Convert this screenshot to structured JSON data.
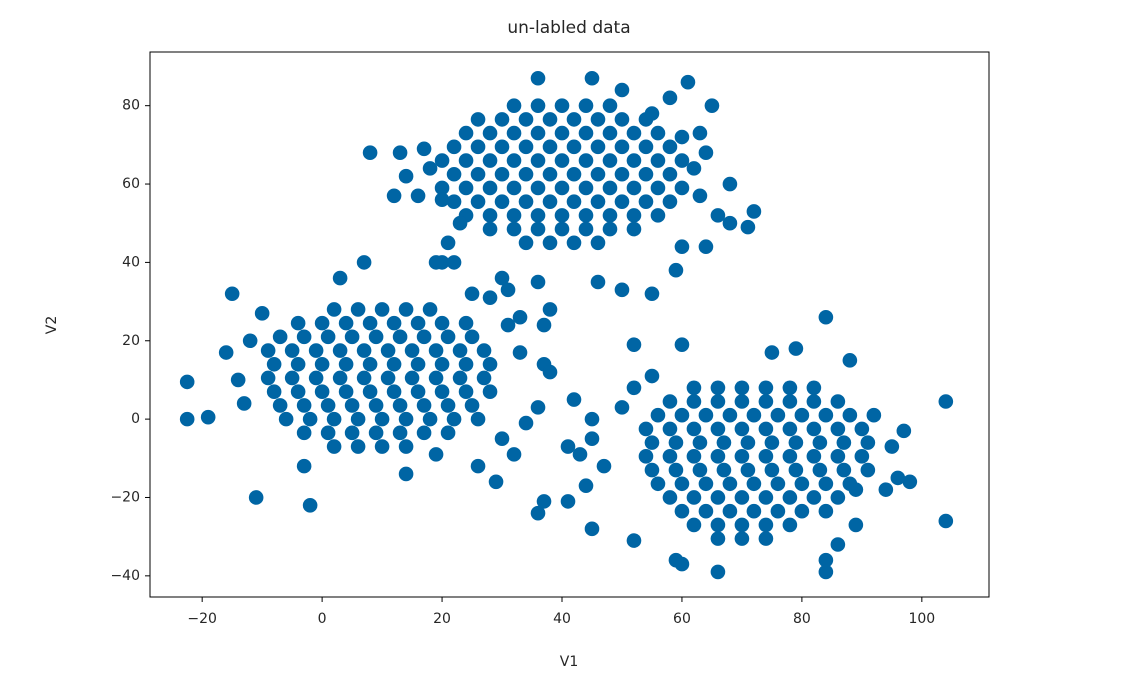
{
  "chart_data": {
    "type": "scatter",
    "title": "un-labled data",
    "xlabel": "V1",
    "ylabel": "V2",
    "color": "#0065a4",
    "xlim": [
      -28.7,
      111.2
    ],
    "ylim": [
      -45.4,
      93.7
    ],
    "xticks": [
      {
        "value": -20,
        "label": "−20"
      },
      0,
      20,
      40,
      60,
      80,
      100
    ],
    "yticks": [
      {
        "value": -40,
        "label": "−40"
      },
      {
        "value": -20,
        "label": "−20"
      },
      0,
      20,
      40,
      60,
      80
    ],
    "grid": false,
    "x": [
      2,
      6,
      10,
      14,
      18,
      -4,
      0,
      4,
      8,
      12,
      16,
      20,
      24,
      -7,
      -3,
      1,
      5,
      9,
      13,
      17,
      21,
      25,
      -9,
      -5,
      -1,
      3,
      7,
      11,
      15,
      19,
      23,
      27,
      -8,
      -4,
      0,
      4,
      8,
      12,
      16,
      20,
      24,
      28,
      -9,
      -5,
      -1,
      3,
      7,
      11,
      15,
      19,
      23,
      27,
      -8,
      -4,
      0,
      4,
      8,
      12,
      16,
      20,
      24,
      28,
      -7,
      -3,
      1,
      5,
      9,
      13,
      17,
      21,
      25,
      -6,
      -2,
      2,
      6,
      10,
      14,
      18,
      22,
      26,
      -3,
      1,
      5,
      9,
      13,
      17,
      21,
      2,
      6,
      10,
      14,
      -22.5,
      -22.5,
      -19,
      -15,
      -11,
      -2,
      -16,
      -14,
      -13,
      -10,
      -12,
      7,
      3,
      20,
      25,
      31,
      29,
      32,
      34,
      36,
      37,
      38,
      26,
      30,
      14,
      -3,
      19,
      33,
      32,
      36,
      40,
      44,
      48,
      26,
      30,
      34,
      38,
      42,
      46,
      50,
      54,
      24,
      28,
      32,
      36,
      40,
      44,
      48,
      52,
      56,
      22,
      26,
      30,
      34,
      38,
      42,
      46,
      50,
      54,
      58,
      20,
      24,
      28,
      32,
      36,
      40,
      44,
      48,
      52,
      56,
      60,
      22,
      26,
      30,
      34,
      38,
      42,
      46,
      50,
      54,
      58,
      20,
      24,
      28,
      32,
      36,
      40,
      44,
      48,
      52,
      56,
      60,
      22,
      26,
      30,
      34,
      38,
      42,
      46,
      50,
      54,
      58,
      24,
      28,
      32,
      36,
      40,
      44,
      48,
      52,
      56,
      28,
      32,
      36,
      40,
      44,
      48,
      52,
      34,
      38,
      42,
      46,
      13,
      12,
      14,
      8,
      17,
      18,
      16,
      20,
      23,
      21,
      19,
      22,
      30,
      28,
      31,
      33,
      38,
      37,
      36,
      46,
      50,
      55,
      59,
      60,
      64,
      66,
      68,
      71,
      72,
      68,
      63,
      62,
      60,
      63,
      55,
      58,
      61,
      65,
      45,
      36,
      50,
      64,
      62,
      66,
      70,
      74,
      78,
      82,
      58,
      62,
      66,
      70,
      74,
      78,
      82,
      86,
      56,
      60,
      64,
      68,
      72,
      76,
      80,
      84,
      88,
      54,
      58,
      62,
      66,
      70,
      74,
      78,
      82,
      86,
      90,
      55,
      59,
      63,
      67,
      71,
      75,
      79,
      83,
      87,
      91,
      54,
      58,
      62,
      66,
      70,
      74,
      78,
      82,
      86,
      90,
      55,
      59,
      63,
      67,
      71,
      75,
      79,
      83,
      87,
      91,
      56,
      60,
      64,
      68,
      72,
      76,
      80,
      84,
      88,
      58,
      62,
      66,
      70,
      74,
      78,
      82,
      86,
      60,
      64,
      68,
      72,
      76,
      80,
      84,
      62,
      66,
      70,
      74,
      78,
      66,
      70,
      74,
      104,
      104,
      97,
      98,
      95,
      94,
      92,
      89,
      86,
      84,
      84,
      66,
      60,
      59,
      52,
      52,
      60,
      75,
      79,
      84,
      88,
      52,
      45,
      45,
      43,
      41,
      44,
      45,
      37,
      36,
      41,
      47,
      50,
      55,
      89,
      96,
      42
    ],
    "values": [
      28,
      28,
      28,
      28,
      28,
      24.5,
      24.5,
      24.5,
      24.5,
      24.5,
      24.5,
      24.5,
      24.5,
      21,
      21,
      21,
      21,
      21,
      21,
      21,
      21,
      21,
      17.5,
      17.5,
      17.5,
      17.5,
      17.5,
      17.5,
      17.5,
      17.5,
      17.5,
      17.5,
      14,
      14,
      14,
      14,
      14,
      14,
      14,
      14,
      14,
      14,
      10.5,
      10.5,
      10.5,
      10.5,
      10.5,
      10.5,
      10.5,
      10.5,
      10.5,
      10.5,
      7,
      7,
      7,
      7,
      7,
      7,
      7,
      7,
      7,
      7,
      3.5,
      3.5,
      3.5,
      3.5,
      3.5,
      3.5,
      3.5,
      3.5,
      3.5,
      0,
      0,
      0,
      0,
      0,
      0,
      0,
      0,
      0,
      -3.5,
      -3.5,
      -3.5,
      -3.5,
      -3.5,
      -3.5,
      -3.5,
      -7,
      -7,
      -7,
      -7,
      9.5,
      0,
      0.5,
      32,
      -20,
      -22,
      17,
      10,
      4,
      27,
      20,
      40,
      36,
      40,
      32,
      24,
      -16,
      -9,
      -1,
      3,
      14,
      12,
      -12,
      -5,
      -14,
      -12,
      -9,
      17,
      80,
      80,
      80,
      80,
      80,
      76.5,
      76.5,
      76.5,
      76.5,
      76.5,
      76.5,
      76.5,
      76.5,
      73,
      73,
      73,
      73,
      73,
      73,
      73,
      73,
      73,
      69.5,
      69.5,
      69.5,
      69.5,
      69.5,
      69.5,
      69.5,
      69.5,
      69.5,
      69.5,
      66,
      66,
      66,
      66,
      66,
      66,
      66,
      66,
      66,
      66,
      66,
      62.5,
      62.5,
      62.5,
      62.5,
      62.5,
      62.5,
      62.5,
      62.5,
      62.5,
      62.5,
      59,
      59,
      59,
      59,
      59,
      59,
      59,
      59,
      59,
      59,
      59,
      55.5,
      55.5,
      55.5,
      55.5,
      55.5,
      55.5,
      55.5,
      55.5,
      55.5,
      55.5,
      52,
      52,
      52,
      52,
      52,
      52,
      52,
      52,
      52,
      48.5,
      48.5,
      48.5,
      48.5,
      48.5,
      48.5,
      48.5,
      45,
      45,
      45,
      45,
      68,
      57,
      62,
      68,
      69,
      64,
      57,
      56,
      50,
      45,
      40,
      40,
      36,
      31,
      33,
      26,
      28,
      24,
      35,
      35,
      33,
      32,
      38,
      44,
      44,
      52,
      50,
      49,
      53,
      60,
      57,
      64,
      72,
      73,
      78,
      82,
      86,
      80,
      87,
      87,
      84,
      68,
      8,
      8,
      8,
      8,
      8,
      8,
      4.5,
      4.5,
      4.5,
      4.5,
      4.5,
      4.5,
      4.5,
      4.5,
      1,
      1,
      1,
      1,
      1,
      1,
      1,
      1,
      1,
      -2.5,
      -2.5,
      -2.5,
      -2.5,
      -2.5,
      -2.5,
      -2.5,
      -2.5,
      -2.5,
      -2.5,
      -6,
      -6,
      -6,
      -6,
      -6,
      -6,
      -6,
      -6,
      -6,
      -6,
      -9.5,
      -9.5,
      -9.5,
      -9.5,
      -9.5,
      -9.5,
      -9.5,
      -9.5,
      -9.5,
      -9.5,
      -13,
      -13,
      -13,
      -13,
      -13,
      -13,
      -13,
      -13,
      -13,
      -13,
      -16.5,
      -16.5,
      -16.5,
      -16.5,
      -16.5,
      -16.5,
      -16.5,
      -16.5,
      -16.5,
      -20,
      -20,
      -20,
      -20,
      -20,
      -20,
      -20,
      -20,
      -23.5,
      -23.5,
      -23.5,
      -23.5,
      -23.5,
      -23.5,
      -23.5,
      -27,
      -27,
      -27,
      -27,
      -27,
      -30.5,
      -30.5,
      -30.5,
      4.5,
      -26,
      -3,
      -16,
      -7,
      -18,
      1,
      -27,
      -32,
      -36,
      -39,
      -39,
      -37,
      -36,
      -31,
      19,
      19,
      17,
      18,
      26,
      15,
      8,
      0,
      -5,
      -9,
      -7,
      -17,
      -28,
      -21,
      -24,
      -21,
      -12,
      3,
      11,
      -18,
      -15,
      5
    ]
  }
}
